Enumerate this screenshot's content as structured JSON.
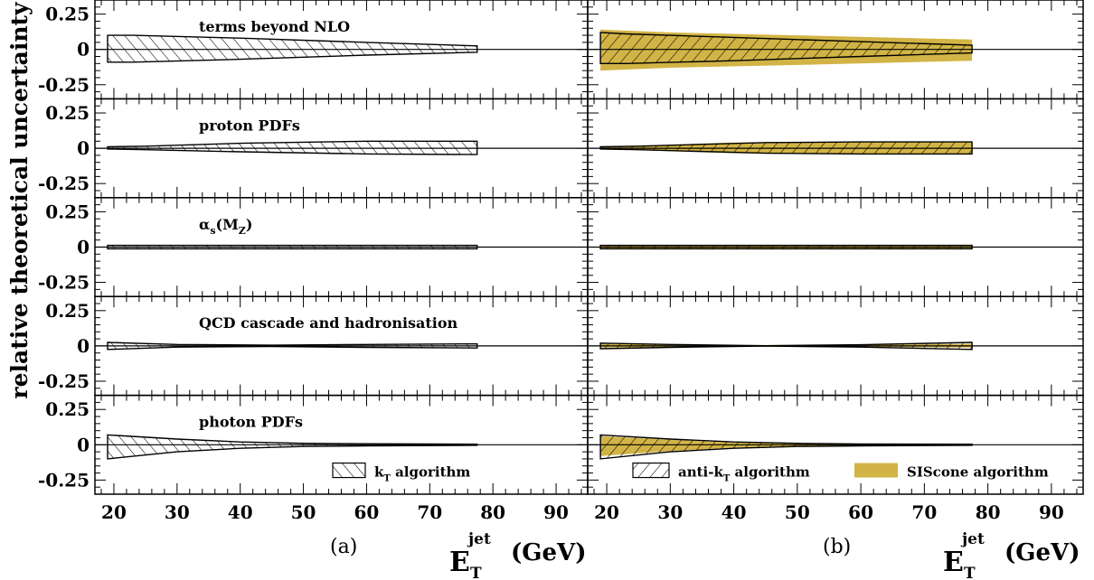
{
  "figure": {
    "ylabel": "relative theoretical uncertainty",
    "xlabel_symbol": "E",
    "xlabel_sub": "T",
    "xlabel_sup": "jet",
    "xlabel_unit": "(GeV)",
    "sub_labels": [
      "(a)",
      "(b)"
    ]
  },
  "legend": {
    "kt": {
      "label_pre": "k",
      "label_sub": "T",
      "label_post": " algorithm"
    },
    "antikt": {
      "label_pre": "anti-k",
      "label_sub": "T",
      "label_post": " algorithm"
    },
    "siscone": {
      "label": "SIScone algorithm"
    }
  },
  "colors": {
    "siscone_fill": "#d2b446",
    "hatch": "#000000",
    "frame": "#000000"
  },
  "chart_data": {
    "type": "area",
    "xlim": [
      17,
      95
    ],
    "ylim": [
      -0.35,
      0.35
    ],
    "x_ticks": [
      20,
      30,
      40,
      50,
      60,
      70,
      80,
      90
    ],
    "y_tick_labels": [
      "0.25",
      "0",
      "-0.25"
    ],
    "y_ticks": [
      0.25,
      0,
      -0.25
    ],
    "rows": [
      {
        "label": "terms beyond NLO",
        "label_main": "terms beyond NLO",
        "label_sub": ""
      },
      {
        "label": "proton PDFs",
        "label_main": "proton PDFs",
        "label_sub": ""
      },
      {
        "label": "αs(MZ)",
        "label_main": "α",
        "label_sub": "s",
        "label_rest": "(M",
        "label_sub2": "Z",
        "label_end": ")"
      },
      {
        "label": "QCD cascade and hadronisation",
        "label_main": "QCD cascade and hadronisation",
        "label_sub": ""
      },
      {
        "label": "photon PDFs",
        "label_main": "photon PDFs",
        "label_sub": ""
      }
    ],
    "panels": [
      {
        "id": "a",
        "bands": [
          {
            "series": "kT algorithm",
            "x": [
              19,
              23,
              40,
              60,
              77.5
            ],
            "upper": [
              0.1,
              0.1,
              0.08,
              0.05,
              0.025
            ],
            "lower": [
              -0.09,
              -0.09,
              -0.07,
              -0.04,
              -0.02
            ]
          },
          {
            "series": "kT algorithm",
            "x": [
              19,
              25,
              40,
              60,
              77.5
            ],
            "upper": [
              0.01,
              0.015,
              0.035,
              0.05,
              0.05
            ],
            "lower": [
              -0.005,
              -0.01,
              -0.025,
              -0.04,
              -0.045
            ]
          },
          {
            "series": "kT algorithm",
            "x": [
              19,
              77.5
            ],
            "upper": [
              0.012,
              0.012
            ],
            "lower": [
              -0.012,
              -0.012
            ]
          },
          {
            "series": "kT algorithm",
            "x": [
              19,
              30,
              45,
              60,
              77.5
            ],
            "upper": [
              0.025,
              0.01,
              0.005,
              0.01,
              0.015
            ],
            "lower": [
              -0.025,
              -0.008,
              -0.004,
              -0.01,
              -0.015
            ]
          },
          {
            "series": "kT algorithm",
            "x": [
              19,
              30,
              40,
              50,
              60,
              77.5
            ],
            "upper": [
              0.07,
              0.04,
              0.02,
              0.01,
              0.007,
              0.004
            ],
            "lower": [
              -0.1,
              -0.05,
              -0.025,
              -0.012,
              -0.008,
              -0.004
            ]
          }
        ],
        "legend_series": [
          "kT algorithm"
        ]
      },
      {
        "id": "b",
        "siscone": [
          {
            "x": [
              19,
              30,
              50,
              77.5
            ],
            "upper": [
              0.14,
              0.12,
              0.1,
              0.07
            ],
            "lower": [
              -0.15,
              -0.13,
              -0.11,
              -0.08
            ]
          },
          {
            "x": [
              19,
              40,
              77.5
            ],
            "upper": [
              0.01,
              0.04,
              0.045
            ],
            "lower": [
              -0.005,
              -0.035,
              -0.04
            ]
          },
          {
            "x": [
              19,
              77.5
            ],
            "upper": [
              0.01,
              0.01
            ],
            "lower": [
              -0.01,
              -0.01
            ]
          },
          {
            "x": [
              19,
              40,
              60,
              77.5
            ],
            "upper": [
              0.015,
              0.006,
              0.008,
              0.015
            ],
            "lower": [
              -0.012,
              -0.004,
              -0.006,
              -0.012
            ]
          },
          {
            "x": [
              19,
              30,
              40,
              50,
              77.5
            ],
            "upper": [
              0.06,
              0.035,
              0.015,
              0.008,
              0.004
            ],
            "lower": [
              -0.08,
              -0.045,
              -0.02,
              -0.01,
              -0.004
            ]
          }
        ],
        "bands": [
          {
            "series": "anti-kT algorithm",
            "x": [
              19,
              23,
              40,
              60,
              77.5
            ],
            "upper": [
              0.12,
              0.11,
              0.085,
              0.055,
              0.03
            ],
            "lower": [
              -0.1,
              -0.1,
              -0.08,
              -0.05,
              -0.025
            ]
          },
          {
            "series": "anti-kT algorithm",
            "x": [
              19,
              25,
              45,
              60,
              77.5
            ],
            "upper": [
              0.01,
              0.015,
              0.04,
              0.045,
              0.045
            ],
            "lower": [
              -0.005,
              -0.01,
              -0.035,
              -0.04,
              -0.04
            ]
          },
          {
            "series": "anti-kT algorithm",
            "x": [
              19,
              77.5
            ],
            "upper": [
              0.012,
              0.012
            ],
            "lower": [
              -0.012,
              -0.012
            ]
          },
          {
            "series": "anti-kT algorithm",
            "x": [
              19,
              30,
              45,
              60,
              77.5
            ],
            "upper": [
              0.02,
              0.01,
              0.001,
              0.008,
              0.025
            ],
            "lower": [
              -0.02,
              -0.01,
              -0.001,
              -0.008,
              -0.025
            ]
          },
          {
            "series": "anti-kT algorithm",
            "x": [
              19,
              30,
              40,
              50,
              60,
              77.5
            ],
            "upper": [
              0.07,
              0.04,
              0.02,
              0.01,
              0.006,
              0.004
            ],
            "lower": [
              -0.1,
              -0.05,
              -0.025,
              -0.012,
              -0.008,
              -0.004
            ]
          }
        ],
        "legend_series": [
          "anti-kT algorithm",
          "SIScone algorithm"
        ]
      }
    ]
  }
}
